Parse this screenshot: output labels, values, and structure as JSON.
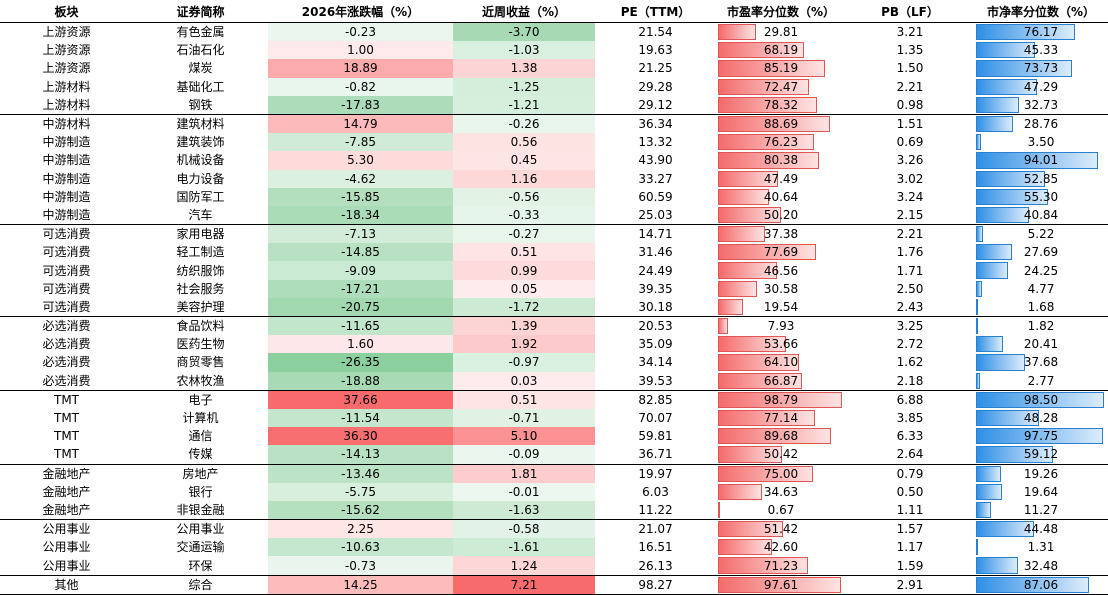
{
  "headers": {
    "sector": "板块",
    "name": "证券简称",
    "ytd": "2026年涨跌幅（%）",
    "week": "近周收益（%）",
    "pe": "PE（TTM）",
    "pe_pct": "市盈率分位数（%）",
    "pb": "PB（LF）",
    "pb_pct": "市净率分位数（%）"
  },
  "colors": {
    "positive": "#f8696b",
    "negative": "#63be7b",
    "pe_bar": "#f46b6b",
    "pb_bar": "#2f8fe6"
  },
  "rows": [
    {
      "sector": "上游资源",
      "name": "有色金属",
      "ytd": "-0.23",
      "week": "-3.70",
      "pe": "21.54",
      "pe_pct": "29.81",
      "pb": "3.21",
      "pb_pct": "76.17"
    },
    {
      "sector": "上游资源",
      "name": "石油石化",
      "ytd": "1.00",
      "week": "-1.03",
      "pe": "19.63",
      "pe_pct": "68.19",
      "pb": "1.35",
      "pb_pct": "45.33"
    },
    {
      "sector": "上游资源",
      "name": "煤炭",
      "ytd": "18.89",
      "week": "1.38",
      "pe": "21.25",
      "pe_pct": "85.19",
      "pb": "1.50",
      "pb_pct": "73.73"
    },
    {
      "sector": "上游材料",
      "name": "基础化工",
      "ytd": "-0.82",
      "week": "-1.25",
      "pe": "29.28",
      "pe_pct": "72.47",
      "pb": "2.21",
      "pb_pct": "47.29"
    },
    {
      "sector": "上游材料",
      "name": "钢铁",
      "ytd": "-17.83",
      "week": "-1.21",
      "pe": "29.12",
      "pe_pct": "78.32",
      "pb": "0.98",
      "pb_pct": "32.73"
    },
    {
      "sector": "中游材料",
      "name": "建筑材料",
      "ytd": "14.79",
      "week": "-0.26",
      "pe": "36.34",
      "pe_pct": "88.69",
      "pb": "1.51",
      "pb_pct": "28.76"
    },
    {
      "sector": "中游制造",
      "name": "建筑装饰",
      "ytd": "-7.85",
      "week": "0.56",
      "pe": "13.32",
      "pe_pct": "76.23",
      "pb": "0.69",
      "pb_pct": "3.50"
    },
    {
      "sector": "中游制造",
      "name": "机械设备",
      "ytd": "5.30",
      "week": "0.45",
      "pe": "43.90",
      "pe_pct": "80.38",
      "pb": "3.26",
      "pb_pct": "94.01"
    },
    {
      "sector": "中游制造",
      "name": "电力设备",
      "ytd": "-4.62",
      "week": "1.16",
      "pe": "33.27",
      "pe_pct": "47.49",
      "pb": "3.02",
      "pb_pct": "52.85"
    },
    {
      "sector": "中游制造",
      "name": "国防军工",
      "ytd": "-15.85",
      "week": "-0.56",
      "pe": "60.59",
      "pe_pct": "40.64",
      "pb": "3.24",
      "pb_pct": "55.30"
    },
    {
      "sector": "中游制造",
      "name": "汽车",
      "ytd": "-18.34",
      "week": "-0.33",
      "pe": "25.03",
      "pe_pct": "50.20",
      "pb": "2.15",
      "pb_pct": "40.84"
    },
    {
      "sector": "可选消费",
      "name": "家用电器",
      "ytd": "-7.13",
      "week": "-0.27",
      "pe": "14.71",
      "pe_pct": "37.38",
      "pb": "2.21",
      "pb_pct": "5.22"
    },
    {
      "sector": "可选消费",
      "name": "轻工制造",
      "ytd": "-14.85",
      "week": "0.51",
      "pe": "31.46",
      "pe_pct": "77.69",
      "pb": "1.76",
      "pb_pct": "27.69"
    },
    {
      "sector": "可选消费",
      "name": "纺织服饰",
      "ytd": "-9.09",
      "week": "0.99",
      "pe": "24.49",
      "pe_pct": "46.56",
      "pb": "1.71",
      "pb_pct": "24.25"
    },
    {
      "sector": "可选消费",
      "name": "社会服务",
      "ytd": "-17.21",
      "week": "0.05",
      "pe": "39.35",
      "pe_pct": "30.58",
      "pb": "2.50",
      "pb_pct": "4.77"
    },
    {
      "sector": "可选消费",
      "name": "美容护理",
      "ytd": "-20.75",
      "week": "-1.72",
      "pe": "30.18",
      "pe_pct": "19.54",
      "pb": "2.43",
      "pb_pct": "1.68"
    },
    {
      "sector": "必选消费",
      "name": "食品饮料",
      "ytd": "-11.65",
      "week": "1.39",
      "pe": "20.53",
      "pe_pct": "7.93",
      "pb": "3.25",
      "pb_pct": "1.82"
    },
    {
      "sector": "必选消费",
      "name": "医药生物",
      "ytd": "1.60",
      "week": "1.92",
      "pe": "35.09",
      "pe_pct": "53.66",
      "pb": "2.72",
      "pb_pct": "20.41"
    },
    {
      "sector": "必选消费",
      "name": "商贸零售",
      "ytd": "-26.35",
      "week": "-0.97",
      "pe": "34.14",
      "pe_pct": "64.10",
      "pb": "1.62",
      "pb_pct": "37.68"
    },
    {
      "sector": "必选消费",
      "name": "农林牧渔",
      "ytd": "-18.88",
      "week": "0.03",
      "pe": "39.53",
      "pe_pct": "66.87",
      "pb": "2.18",
      "pb_pct": "2.77"
    },
    {
      "sector": "TMT",
      "name": "电子",
      "ytd": "37.66",
      "week": "0.51",
      "pe": "82.85",
      "pe_pct": "98.79",
      "pb": "6.88",
      "pb_pct": "98.50"
    },
    {
      "sector": "TMT",
      "name": "计算机",
      "ytd": "-11.54",
      "week": "-0.71",
      "pe": "70.07",
      "pe_pct": "77.14",
      "pb": "3.85",
      "pb_pct": "48.28"
    },
    {
      "sector": "TMT",
      "name": "通信",
      "ytd": "36.30",
      "week": "5.10",
      "pe": "59.81",
      "pe_pct": "89.68",
      "pb": "6.33",
      "pb_pct": "97.75"
    },
    {
      "sector": "TMT",
      "name": "传媒",
      "ytd": "-14.13",
      "week": "-0.09",
      "pe": "36.71",
      "pe_pct": "50.42",
      "pb": "2.64",
      "pb_pct": "59.12"
    },
    {
      "sector": "金融地产",
      "name": "房地产",
      "ytd": "-13.46",
      "week": "1.81",
      "pe": "19.97",
      "pe_pct": "75.00",
      "pb": "0.79",
      "pb_pct": "19.26"
    },
    {
      "sector": "金融地产",
      "name": "银行",
      "ytd": "-5.75",
      "week": "-0.01",
      "pe": "6.03",
      "pe_pct": "34.63",
      "pb": "0.50",
      "pb_pct": "19.64"
    },
    {
      "sector": "金融地产",
      "name": "非银金融",
      "ytd": "-15.62",
      "week": "-1.63",
      "pe": "11.22",
      "pe_pct": "0.67",
      "pb": "1.11",
      "pb_pct": "11.27"
    },
    {
      "sector": "公用事业",
      "name": "公用事业",
      "ytd": "2.25",
      "week": "-0.58",
      "pe": "21.07",
      "pe_pct": "51.42",
      "pb": "1.57",
      "pb_pct": "44.48"
    },
    {
      "sector": "公用事业",
      "name": "交通运输",
      "ytd": "-10.63",
      "week": "-1.61",
      "pe": "16.51",
      "pe_pct": "42.60",
      "pb": "1.17",
      "pb_pct": "1.31"
    },
    {
      "sector": "公用事业",
      "name": "环保",
      "ytd": "-0.73",
      "week": "1.24",
      "pe": "26.13",
      "pe_pct": "71.23",
      "pb": "1.59",
      "pb_pct": "32.48"
    },
    {
      "sector": "其他",
      "name": "综合",
      "ytd": "14.25",
      "week": "7.21",
      "pe": "98.27",
      "pe_pct": "97.61",
      "pb": "2.91",
      "pb_pct": "87.06"
    }
  ]
}
